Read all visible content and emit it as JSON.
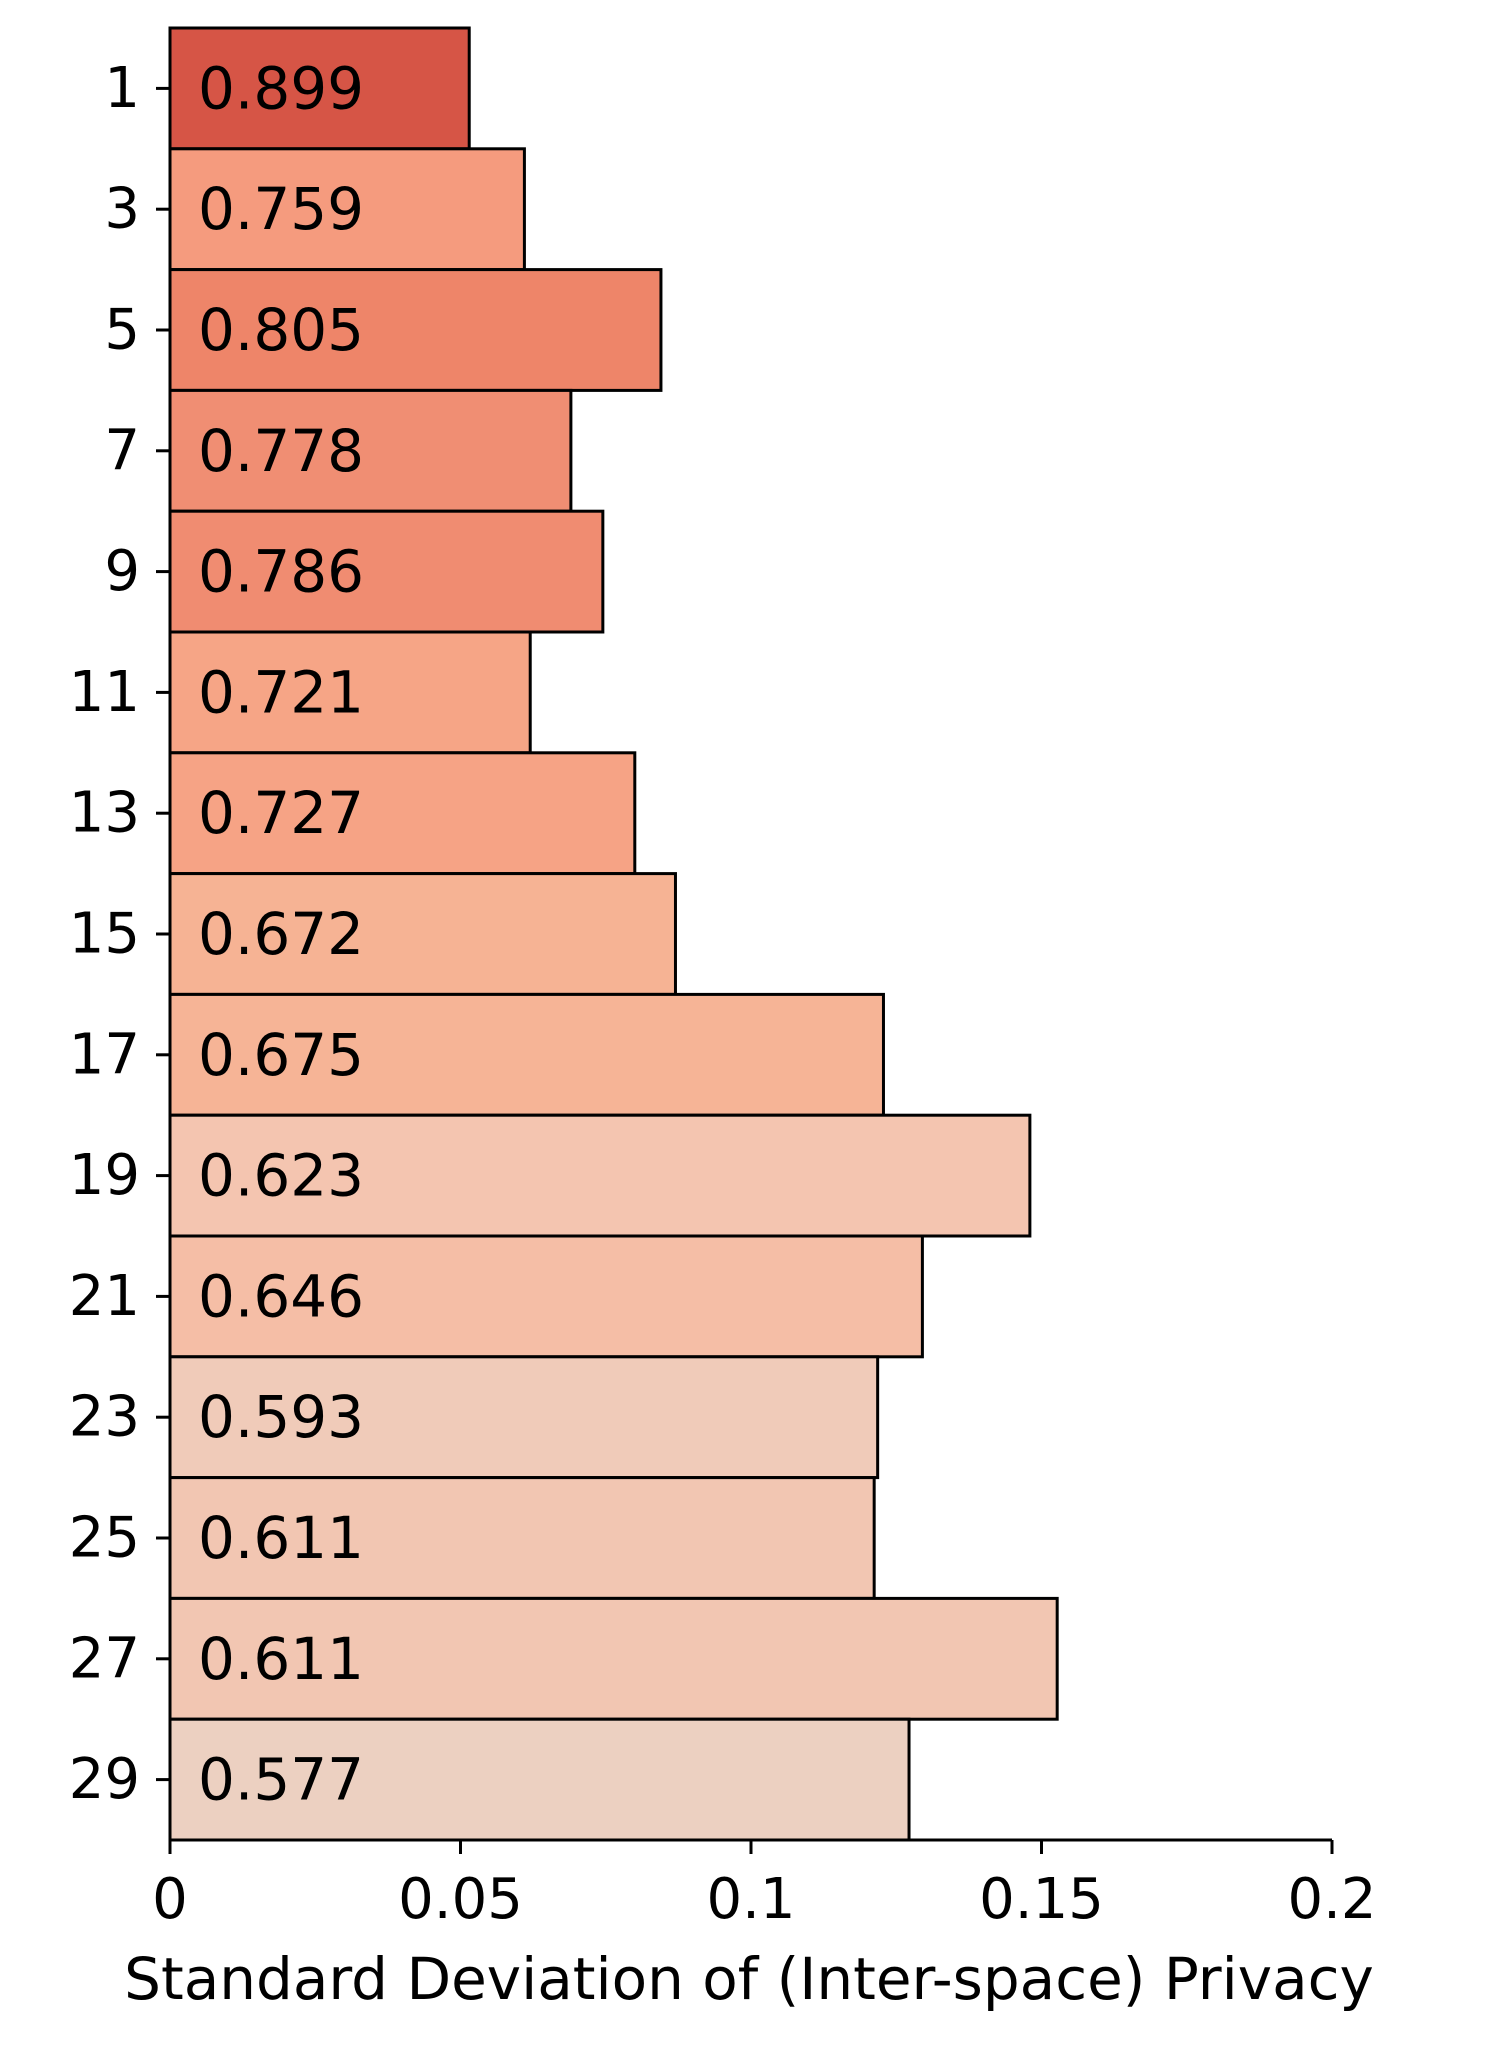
{
  "chart_data": {
    "type": "bar",
    "orientation": "horizontal",
    "categories": [
      "1",
      "3",
      "5",
      "7",
      "9",
      "11",
      "13",
      "15",
      "17",
      "19",
      "21",
      "23",
      "25",
      "27",
      "29"
    ],
    "values": [
      0.0515,
      0.061,
      0.0845,
      0.069,
      0.0745,
      0.062,
      0.08,
      0.087,
      0.1228,
      0.148,
      0.1295,
      0.1218,
      0.1212,
      0.1527,
      0.1272
    ],
    "bar_labels": [
      "0.899",
      "0.759",
      "0.805",
      "0.778",
      "0.786",
      "0.721",
      "0.727",
      "0.672",
      "0.675",
      "0.623",
      "0.646",
      "0.593",
      "0.611",
      "0.611",
      "0.577"
    ],
    "bar_colors": [
      "#d65546",
      "#f59b7e",
      "#ee8569",
      "#f08e73",
      "#f08c71",
      "#f6a586",
      "#f6a385",
      "#f6b394",
      "#f6b496",
      "#f4c5b0",
      "#f5bea6",
      "#f0cbb9",
      "#f2c6b2",
      "#f2c6b2",
      "#ecd0c1"
    ],
    "x_ticks": [
      "0",
      "0.05",
      "0.1",
      "0.15",
      "0.2"
    ],
    "x_tick_values": [
      0,
      0.05,
      0.1,
      0.15,
      0.2
    ],
    "xlim": [
      0,
      0.2
    ],
    "xlabel": "Standard Deviation of (Inter-space) Privacy",
    "ylabel": "",
    "title": "",
    "grid": false,
    "legend": "none"
  }
}
